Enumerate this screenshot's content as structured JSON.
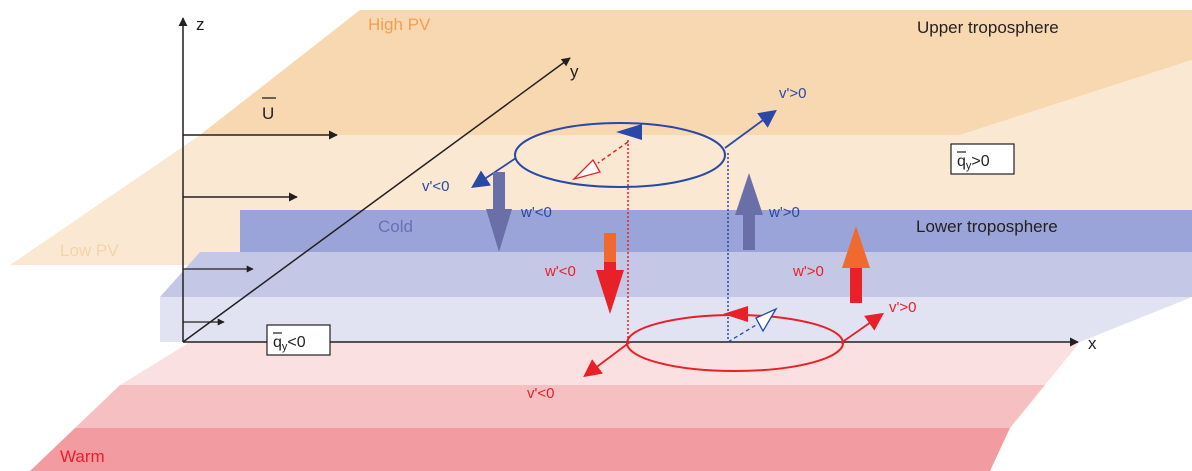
{
  "labels": {
    "high_pv": "High PV",
    "upper_troposphere": "Upper troposphere",
    "low_pv": "Low PV",
    "cold": "Cold",
    "lower_troposphere": "Lower troposphere",
    "warm": "Warm",
    "axis_z": "z",
    "axis_y": "y",
    "axis_x": "x",
    "u_bar": "U",
    "qy_upper_q": "q",
    "qy_upper_sub": "y",
    "qy_upper_rel": ">0",
    "qy_lower_q": "q",
    "qy_lower_sub": "y",
    "qy_lower_rel": "<0",
    "upper_v_pos": "v'>0",
    "upper_v_neg": "v'<0",
    "upper_w_neg": "w'<0",
    "upper_w_pos": "w'>0",
    "lower_w_neg": "w'<0",
    "lower_w_pos": "w'>0",
    "lower_v_pos": "v'>0",
    "lower_v_neg": "v'<0"
  },
  "colors": {
    "upper_layer": "#f8d8b0",
    "upper_layer_light": "#fbe8d2",
    "cold_layer": "#9aa4d8",
    "cold_layer_light": "#cfd4ec",
    "warm_layer": "#f4a0a4",
    "warm_layer_light": "#f9d0d2",
    "high_pv_text": "#f0a050",
    "low_pv_text": "#f4d4a8",
    "cold_text": "#6a70b8",
    "warm_text": "#e8202a",
    "blue": "#2a48a8",
    "red": "#e82028",
    "orange": "#f06a30",
    "slate": "#6a6fa8",
    "black": "#231f20"
  }
}
